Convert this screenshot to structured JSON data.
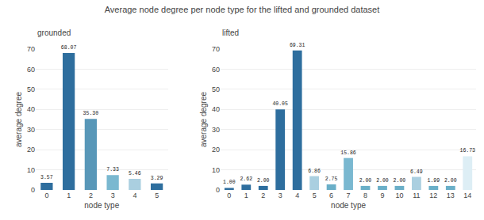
{
  "chart_data": [
    {
      "type": "bar",
      "title": "Average node degree per node type for the lifted and grounded dataset",
      "subtitle": "grounded",
      "xlabel": "node type",
      "ylabel": "average degree",
      "categories": [
        0,
        1,
        2,
        3,
        4,
        5
      ],
      "values": [
        3.57,
        68.07,
        35.3,
        7.33,
        5.46,
        3.29
      ],
      "value_labels": [
        "3.57",
        "68.07",
        "35.30",
        "7.33",
        "5.46",
        "3.29"
      ],
      "colors": [
        "#2e6e9e",
        "#2e6e9e",
        "#5897b8",
        "#7ab8d0",
        "#aacfe0",
        "#2e6e9e"
      ],
      "ylim": [
        0,
        70
      ],
      "yticks": [
        0,
        10,
        20,
        30,
        40,
        50,
        60,
        70
      ],
      "grid": true,
      "data_labels": true
    },
    {
      "type": "bar",
      "subtitle": "lifted",
      "xlabel": "node type",
      "ylabel": "average degree",
      "categories": [
        0,
        1,
        2,
        3,
        4,
        5,
        6,
        7,
        8,
        9,
        10,
        11,
        12,
        13,
        14
      ],
      "values": [
        1.0,
        2.62,
        2.0,
        40.05,
        69.31,
        6.86,
        2.75,
        15.86,
        2.0,
        2.0,
        2.0,
        6.49,
        1.99,
        2.0,
        16.73
      ],
      "value_labels": [
        "1.00",
        "2.62",
        "2.00",
        "40.05",
        "69.31",
        "6.86",
        "2.75",
        "15.86",
        "2.00",
        "2.00",
        "2.00",
        "6.49",
        "1.99",
        "2.00",
        "16.73"
      ],
      "colors": [
        "#2e6e9e",
        "#2e6e9e",
        "#2e6e9e",
        "#2e6e9e",
        "#2e6e9e",
        "#aacfe0",
        "#6aafc8",
        "#7ab8d0",
        "#6aafc8",
        "#6aafc8",
        "#6aafc8",
        "#aacfe0",
        "#6aafc8",
        "#6aafc8",
        "#ddeef5"
      ],
      "ylim": [
        0,
        70
      ],
      "yticks": [
        0,
        10,
        20,
        30,
        40,
        50,
        60,
        70
      ],
      "grid": true,
      "data_labels": true
    }
  ]
}
